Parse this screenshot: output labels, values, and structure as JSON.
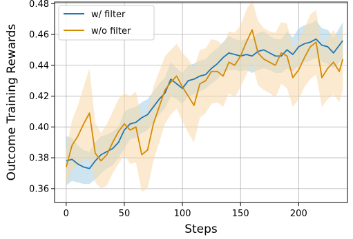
{
  "chart_data": {
    "type": "line",
    "title": "",
    "xlabel": "Steps",
    "ylabel": "Outcome Training Rewards",
    "xlim": [
      -10,
      242
    ],
    "ylim": [
      0.351,
      0.481
    ],
    "xticks": [
      0,
      50,
      100,
      150,
      200
    ],
    "xtick_labels": [
      "0",
      "50",
      "100",
      "150",
      "200"
    ],
    "yticks": [
      0.36,
      0.38,
      0.4,
      0.42,
      0.44,
      0.46,
      0.48
    ],
    "ytick_labels": [
      "0.36",
      "0.38",
      "0.40",
      "0.42",
      "0.44",
      "0.46",
      "0.48"
    ],
    "grid": true,
    "legend_position": "top-left",
    "series": [
      {
        "name": "w/ filter",
        "color": "#1f77b4",
        "band_color": "#a6cee3",
        "x": [
          0,
          5,
          10,
          15,
          20,
          25,
          30,
          35,
          40,
          45,
          50,
          55,
          60,
          65,
          70,
          75,
          80,
          85,
          90,
          95,
          100,
          105,
          110,
          115,
          120,
          125,
          130,
          135,
          140,
          145,
          150,
          155,
          160,
          165,
          170,
          175,
          180,
          185,
          190,
          195,
          200,
          205,
          210,
          215,
          220,
          225,
          230,
          235,
          238
        ],
        "y": [
          0.378,
          0.379,
          0.376,
          0.374,
          0.373,
          0.378,
          0.382,
          0.384,
          0.386,
          0.39,
          0.398,
          0.402,
          0.403,
          0.406,
          0.408,
          0.413,
          0.418,
          0.422,
          0.431,
          0.428,
          0.425,
          0.43,
          0.431,
          0.433,
          0.434,
          0.438,
          0.441,
          0.445,
          0.448,
          0.447,
          0.446,
          0.447,
          0.446,
          0.449,
          0.45,
          0.448,
          0.446,
          0.446,
          0.45,
          0.447,
          0.452,
          0.454,
          0.455,
          0.457,
          0.453,
          0.452,
          0.448,
          0.453,
          0.456
        ],
        "lower": [
          0.362,
          0.365,
          0.364,
          0.363,
          0.363,
          0.366,
          0.37,
          0.373,
          0.375,
          0.38,
          0.386,
          0.392,
          0.393,
          0.396,
          0.398,
          0.403,
          0.408,
          0.412,
          0.42,
          0.418,
          0.415,
          0.42,
          0.421,
          0.423,
          0.425,
          0.428,
          0.431,
          0.435,
          0.437,
          0.437,
          0.436,
          0.437,
          0.435,
          0.437,
          0.438,
          0.437,
          0.435,
          0.435,
          0.438,
          0.436,
          0.44,
          0.442,
          0.443,
          0.445,
          0.442,
          0.441,
          0.438,
          0.442,
          0.444
        ],
        "upper": [
          0.394,
          0.393,
          0.388,
          0.385,
          0.384,
          0.39,
          0.394,
          0.395,
          0.397,
          0.4,
          0.41,
          0.412,
          0.413,
          0.416,
          0.418,
          0.423,
          0.428,
          0.432,
          0.442,
          0.438,
          0.435,
          0.44,
          0.441,
          0.443,
          0.444,
          0.448,
          0.451,
          0.455,
          0.459,
          0.457,
          0.456,
          0.457,
          0.457,
          0.461,
          0.462,
          0.459,
          0.457,
          0.457,
          0.462,
          0.458,
          0.464,
          0.466,
          0.467,
          0.469,
          0.464,
          0.463,
          0.458,
          0.464,
          0.468
        ]
      },
      {
        "name": "w/o filter",
        "color": "#d68a00",
        "band_color": "#f8d8a8",
        "x": [
          0,
          5,
          10,
          15,
          20,
          25,
          30,
          35,
          40,
          45,
          50,
          55,
          60,
          65,
          70,
          75,
          80,
          85,
          90,
          95,
          100,
          105,
          110,
          115,
          120,
          125,
          130,
          135,
          140,
          145,
          150,
          155,
          160,
          165,
          170,
          175,
          180,
          185,
          190,
          195,
          200,
          205,
          210,
          215,
          220,
          225,
          230,
          235,
          238
        ],
        "y": [
          0.374,
          0.388,
          0.394,
          0.402,
          0.409,
          0.383,
          0.378,
          0.382,
          0.39,
          0.397,
          0.402,
          0.398,
          0.4,
          0.382,
          0.385,
          0.402,
          0.413,
          0.424,
          0.429,
          0.433,
          0.426,
          0.42,
          0.414,
          0.428,
          0.43,
          0.436,
          0.436,
          0.433,
          0.442,
          0.44,
          0.446,
          0.455,
          0.463,
          0.448,
          0.444,
          0.442,
          0.44,
          0.448,
          0.446,
          0.432,
          0.437,
          0.445,
          0.452,
          0.455,
          0.432,
          0.438,
          0.442,
          0.436,
          0.444
        ],
        "lower": [
          0.362,
          0.372,
          0.375,
          0.378,
          0.38,
          0.364,
          0.36,
          0.362,
          0.37,
          0.376,
          0.382,
          0.376,
          0.377,
          0.358,
          0.36,
          0.378,
          0.39,
          0.402,
          0.408,
          0.412,
          0.404,
          0.396,
          0.39,
          0.406,
          0.409,
          0.415,
          0.416,
          0.413,
          0.422,
          0.419,
          0.426,
          0.434,
          0.441,
          0.427,
          0.424,
          0.422,
          0.419,
          0.428,
          0.425,
          0.413,
          0.418,
          0.426,
          0.431,
          0.434,
          0.413,
          0.418,
          0.421,
          0.416,
          0.424
        ],
        "upper": [
          0.386,
          0.404,
          0.414,
          0.426,
          0.438,
          0.403,
          0.396,
          0.402,
          0.41,
          0.418,
          0.422,
          0.42,
          0.423,
          0.406,
          0.41,
          0.426,
          0.436,
          0.446,
          0.45,
          0.454,
          0.448,
          0.444,
          0.438,
          0.45,
          0.451,
          0.457,
          0.456,
          0.453,
          0.462,
          0.461,
          0.466,
          0.476,
          0.482,
          0.469,
          0.464,
          0.462,
          0.461,
          0.468,
          0.467,
          0.451,
          0.456,
          0.464,
          0.473,
          0.476,
          0.451,
          0.458,
          0.463,
          0.456,
          0.464
        ]
      }
    ]
  }
}
